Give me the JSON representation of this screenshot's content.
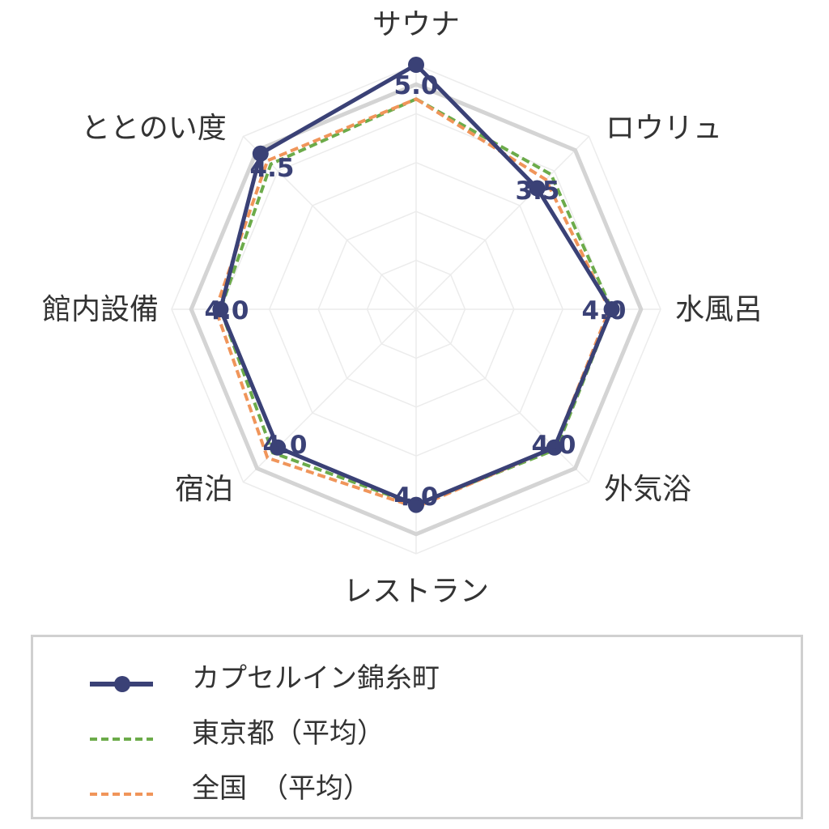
{
  "chart_data": {
    "type": "radar",
    "categories": [
      "サウナ",
      "ロウリュ",
      "水風呂",
      "外気浴",
      "レストラン",
      "宿泊",
      "館内設備",
      "ととのい度"
    ],
    "value_labels": [
      "5.0",
      "3.5",
      "4.0",
      "4.0",
      "4.0",
      "4.0",
      "4.0",
      "4.5"
    ],
    "rlim": [
      0,
      5
    ],
    "grid": true,
    "legend_position": "bottom",
    "series": [
      {
        "name": "カプセルイン錦糸町",
        "values": [
          5.0,
          3.5,
          4.0,
          4.0,
          4.0,
          4.0,
          4.0,
          4.5
        ],
        "color": "#3a4176",
        "style": "solid-markers"
      },
      {
        "name": "東京都（平均）",
        "values": [
          4.3,
          3.9,
          4.0,
          4.05,
          4.0,
          4.15,
          4.0,
          4.2
        ],
        "color": "#6cab4a",
        "style": "dashed"
      },
      {
        "name": "全国　（平均）",
        "values": [
          4.3,
          3.75,
          3.95,
          4.0,
          4.05,
          4.3,
          4.1,
          4.3
        ],
        "color": "#f0955a",
        "style": "dashed"
      }
    ],
    "reference_ring": {
      "value": 4.6,
      "color": "#d4d4d4"
    }
  },
  "colors": {
    "grid": "#ececec",
    "label_text": "#333333",
    "value_text": "#3a4176"
  }
}
